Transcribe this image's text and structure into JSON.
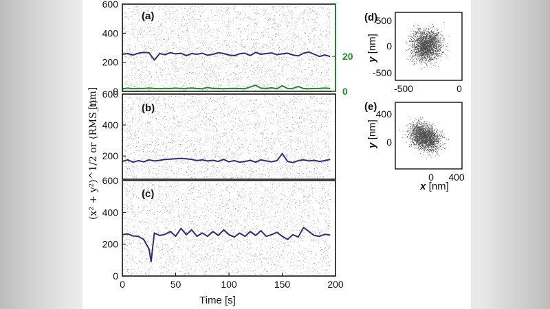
{
  "chart_data": [
    {
      "id": "a",
      "type": "scatter+line",
      "panel_label": "(a)",
      "ylim": [
        0,
        600
      ],
      "yticks": [
        "0",
        "200",
        "400",
        "600"
      ],
      "xlim": [
        0,
        200
      ],
      "y2lim": [
        0,
        50
      ],
      "y2ticks": [
        "0",
        "20"
      ],
      "y2_color": "#1f8a2a",
      "series": [
        {
          "color": "#2b2d7a",
          "x": [
            0,
            5,
            10,
            15,
            20,
            25,
            30,
            35,
            40,
            45,
            50,
            55,
            60,
            65,
            70,
            75,
            80,
            85,
            90,
            95,
            100,
            105,
            110,
            115,
            120,
            125,
            130,
            135,
            140,
            145,
            150,
            155,
            160,
            165,
            170,
            175,
            180,
            185,
            190,
            195
          ],
          "y": [
            255,
            260,
            250,
            262,
            268,
            265,
            215,
            260,
            252,
            266,
            258,
            262,
            245,
            260,
            255,
            262,
            248,
            255,
            266,
            260,
            250,
            245,
            258,
            262,
            246,
            268,
            255,
            260,
            264,
            252,
            258,
            262,
            250,
            244,
            262,
            270,
            255,
            240,
            250,
            240
          ]
        },
        {
          "color": "#1f8a2a",
          "axis": "y2",
          "x": [
            0,
            5,
            10,
            15,
            20,
            25,
            30,
            35,
            40,
            45,
            50,
            55,
            60,
            65,
            70,
            75,
            80,
            85,
            90,
            95,
            100,
            105,
            110,
            115,
            120,
            125,
            130,
            135,
            140,
            145,
            150,
            155,
            160,
            165,
            170,
            175,
            180,
            185,
            190,
            195
          ],
          "y": [
            1.5,
            1.8,
            1.5,
            1.7,
            1.6,
            1.9,
            1.6,
            1.5,
            1.7,
            1.6,
            1.8,
            1.6,
            1.7,
            1.9,
            1.6,
            1.5,
            2.2,
            1.6,
            1.7,
            1.5,
            1.6,
            1.7,
            1.6,
            1.5,
            2.5,
            3.5,
            1.8,
            1.6,
            2.0,
            1.5,
            3.2,
            1.6,
            1.7,
            2.8,
            1.6,
            1.5,
            1.6,
            1.7,
            1.9,
            1.6
          ]
        }
      ]
    },
    {
      "id": "b",
      "type": "scatter+line",
      "panel_label": "(b)",
      "ylim": [
        0,
        600
      ],
      "yticks": [
        "200",
        "400",
        "600"
      ],
      "xlim": [
        0,
        200
      ],
      "series": [
        {
          "color": "#2b2d7a",
          "x": [
            0,
            5,
            10,
            15,
            20,
            25,
            30,
            35,
            40,
            45,
            50,
            55,
            60,
            65,
            70,
            75,
            80,
            85,
            90,
            95,
            100,
            105,
            110,
            115,
            120,
            125,
            130,
            135,
            140,
            145,
            150,
            155,
            160,
            165,
            170,
            175,
            180,
            185,
            190,
            195
          ],
          "y": [
            165,
            175,
            160,
            170,
            162,
            175,
            168,
            172,
            178,
            180,
            182,
            185,
            182,
            178,
            170,
            175,
            168,
            172,
            165,
            178,
            162,
            170,
            160,
            165,
            172,
            160,
            175,
            168,
            162,
            170,
            215,
            165,
            158,
            170,
            175,
            168,
            172,
            165,
            170,
            178
          ]
        }
      ]
    },
    {
      "id": "c",
      "type": "scatter+line",
      "panel_label": "(c)",
      "ylim": [
        0,
        600
      ],
      "yticks": [
        "0",
        "200",
        "400",
        "600"
      ],
      "xlim": [
        0,
        200
      ],
      "xticks": [
        "0",
        "50",
        "100",
        "150",
        "200"
      ],
      "xlabel": "Time [s]",
      "series": [
        {
          "color": "#2b2d7a",
          "x": [
            0,
            5,
            10,
            15,
            20,
            25,
            27,
            30,
            35,
            40,
            45,
            50,
            55,
            60,
            65,
            70,
            75,
            80,
            85,
            90,
            95,
            100,
            105,
            110,
            115,
            120,
            125,
            130,
            135,
            140,
            145,
            150,
            155,
            160,
            165,
            170,
            175,
            180,
            185,
            190,
            195
          ],
          "y": [
            260,
            265,
            252,
            250,
            230,
            170,
            90,
            270,
            255,
            262,
            280,
            250,
            300,
            260,
            290,
            250,
            270,
            250,
            280,
            255,
            290,
            260,
            245,
            270,
            250,
            280,
            255,
            285,
            250,
            260,
            275,
            250,
            230,
            260,
            245,
            305,
            280,
            255,
            250,
            262,
            258
          ]
        }
      ]
    },
    {
      "id": "d",
      "type": "scatter",
      "panel_label": "(d)",
      "xticks": [
        "-500",
        "0"
      ],
      "yticks": [
        "500",
        "0",
        "-500"
      ],
      "ylabel_var": "y",
      "ylabel_unit": " [nm]"
    },
    {
      "id": "e",
      "type": "scatter",
      "panel_label": "(e)",
      "xticks": [
        "0",
        "400"
      ],
      "yticks": [
        "400",
        "0"
      ],
      "xlabel_var": "x",
      "xlabel_unit": " [nm]",
      "ylabel_var": "y",
      "ylabel_unit": " [nm]"
    }
  ],
  "shared_ylabel": "(x² + y²)^1/2 or ⟨RMS_t⟩",
  "shared_ylabel_unit": "[nm]"
}
